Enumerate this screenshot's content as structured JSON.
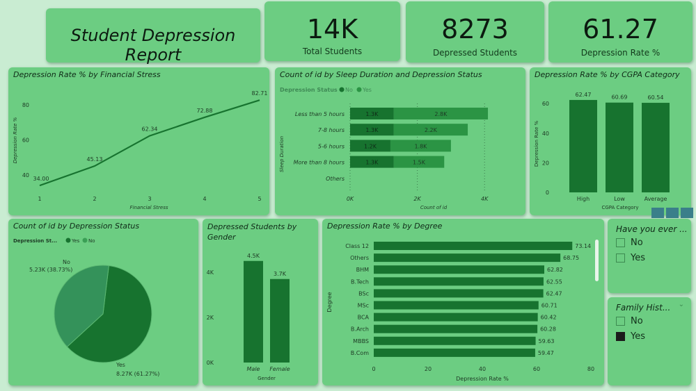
{
  "title": "Student Depression Report",
  "kpis": [
    {
      "value": "14K",
      "label": "Total Students"
    },
    {
      "value": "8273",
      "label": "Depressed Students"
    },
    {
      "value": "61.27",
      "label": "Depression Rate %"
    }
  ],
  "colors": {
    "background": "#c9ecd2",
    "card": "#6ccd82",
    "dark": "#17732f",
    "mid": "#2b9444",
    "light": "#3a9f55"
  },
  "line_chart": {
    "title": "Depression Rate % by Financial Stress",
    "type": "line",
    "xlabel": "Financial Stress",
    "ylabel": "Depression Rate %",
    "x": [
      1,
      2,
      3,
      4,
      5
    ],
    "y": [
      34.0,
      45.13,
      62.34,
      72.88,
      82.71
    ],
    "labels": [
      "34.00",
      "45.13",
      "62.34",
      "72.88",
      "82.71"
    ],
    "yticks": [
      "40",
      "60",
      "80"
    ],
    "xticks": [
      "1",
      "2",
      "3",
      "4",
      "5"
    ]
  },
  "sleep_chart": {
    "title": "Count of id by Sleep Duration and Depression Status",
    "type": "bar",
    "legend_title": "Depression Status",
    "legend": [
      "No",
      "Yes"
    ],
    "ylabel": "Sleep Duration",
    "xlabel": "Count of id",
    "categories": [
      "Less than 5 hours",
      "7-8 hours",
      "5-6 hours",
      "More than 8 hours",
      "Others"
    ],
    "series": [
      {
        "name": "No",
        "values": [
          1.3,
          1.3,
          1.2,
          1.3,
          0
        ],
        "labels": [
          "1.3K",
          "1.3K",
          "1.2K",
          "1.3K",
          ""
        ]
      },
      {
        "name": "Yes",
        "values": [
          2.8,
          2.2,
          1.8,
          1.5,
          0
        ],
        "labels": [
          "2.8K",
          "2.2K",
          "1.8K",
          "1.5K",
          ""
        ]
      }
    ],
    "xticks": [
      "0K",
      "2K",
      "4K"
    ]
  },
  "cgpa_chart": {
    "title": "Depression Rate % by CGPA Category",
    "type": "bar",
    "xlabel": "CGPA Category",
    "ylabel": "Depression Rate %",
    "categories": [
      "High",
      "Low",
      "Average"
    ],
    "values": [
      62.47,
      60.69,
      60.54
    ],
    "labels": [
      "62.47",
      "60.69",
      "60.54"
    ],
    "yticks": [
      "0",
      "20",
      "40",
      "60"
    ]
  },
  "pie_chart": {
    "title": "Count of id by Depression Status",
    "type": "pie",
    "legend_title": "Depression St...",
    "legend": [
      "Yes",
      "No"
    ],
    "slices": [
      {
        "name": "Yes",
        "value": 8270,
        "pct": 61.27,
        "label": "8.27K (61.27%)"
      },
      {
        "name": "No",
        "value": 5230,
        "pct": 38.73,
        "label": "5.23K (38.73%)"
      }
    ]
  },
  "gender_chart": {
    "title": "Depressed Students by Gender",
    "type": "bar",
    "xlabel": "Gender",
    "categories": [
      "Male",
      "Female"
    ],
    "values": [
      4.5,
      3.7
    ],
    "labels": [
      "4.5K",
      "3.7K"
    ],
    "yticks": [
      "0K",
      "2K",
      "4K"
    ]
  },
  "degree_chart": {
    "title": "Depression Rate % by Degree",
    "type": "bar",
    "xlabel": "Depression Rate %",
    "ylabel": "Degree",
    "categories": [
      "Class 12",
      "Others",
      "BHM",
      "B.Tech",
      "BSc",
      "MSc",
      "BCA",
      "B.Arch",
      "MBBS",
      "B.Com"
    ],
    "values": [
      73.14,
      68.75,
      62.82,
      62.55,
      62.47,
      60.71,
      60.42,
      60.28,
      59.63,
      59.47
    ],
    "labels": [
      "73.14",
      "68.75",
      "62.82",
      "62.55",
      "62.47",
      "60.71",
      "60.42",
      "60.28",
      "59.63",
      "59.47"
    ],
    "xticks": [
      "0",
      "20",
      "40",
      "60",
      "80"
    ]
  },
  "slicers": [
    {
      "title": "Have you ever ...",
      "items": [
        {
          "label": "No",
          "checked": false
        },
        {
          "label": "Yes",
          "checked": false
        }
      ]
    },
    {
      "title": "Family Hist...",
      "items": [
        {
          "label": "No",
          "checked": false
        },
        {
          "label": "Yes",
          "checked": true
        }
      ]
    }
  ]
}
